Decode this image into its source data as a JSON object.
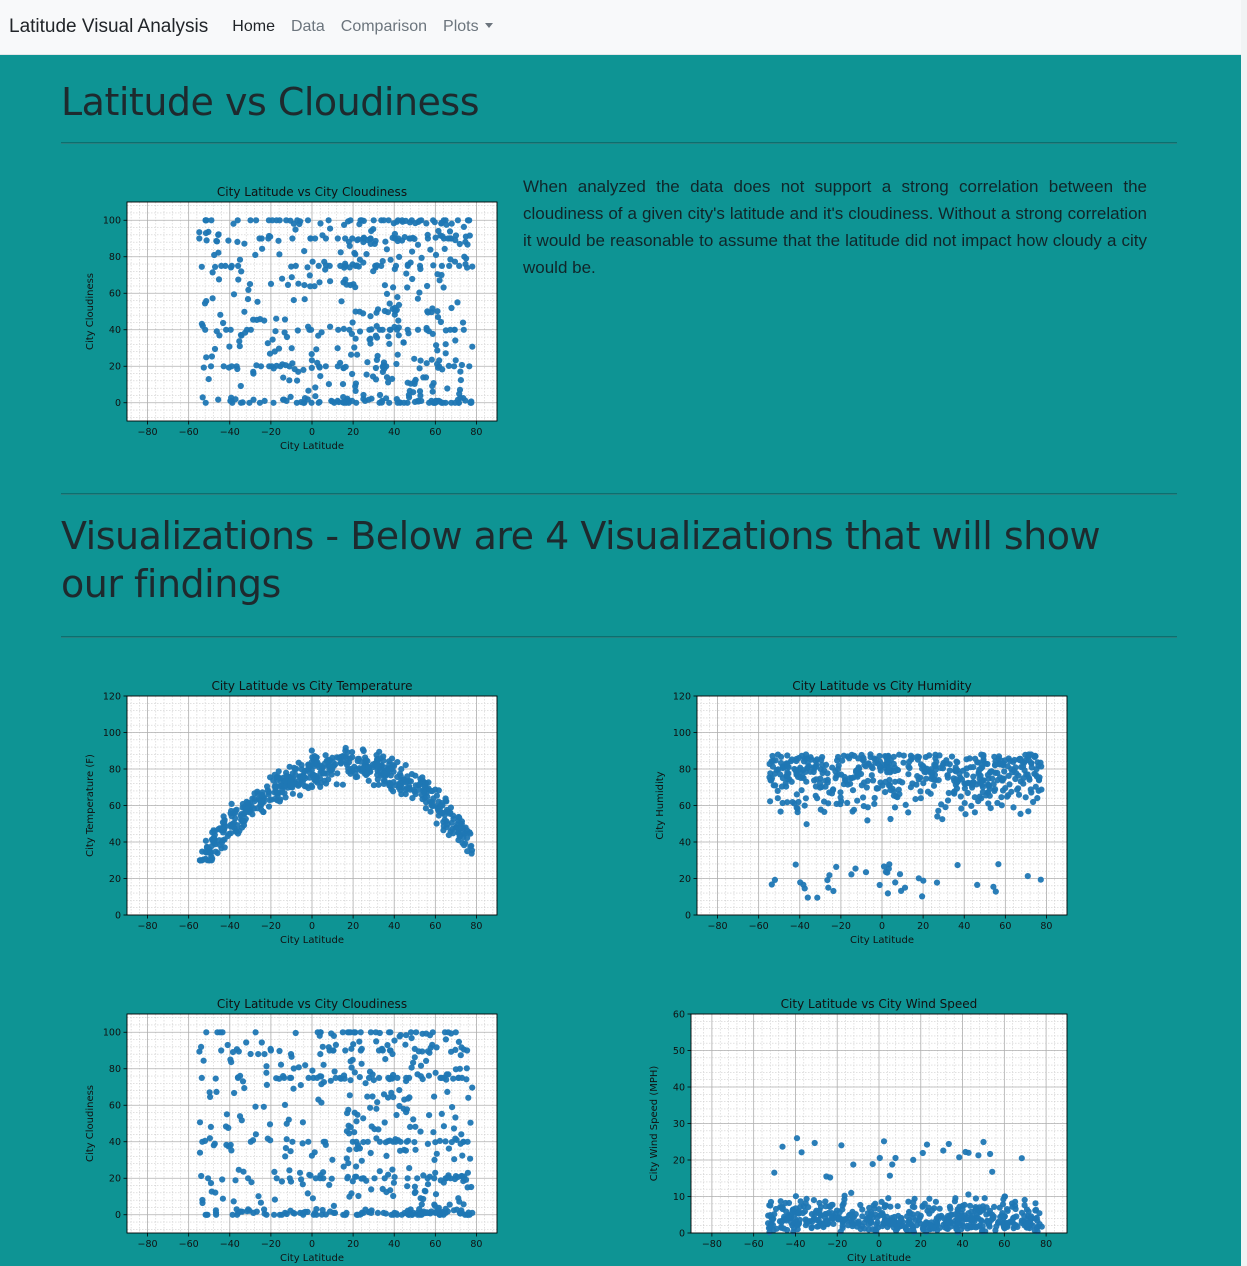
{
  "navbar": {
    "brand": "Latitude Visual Analysis",
    "items": [
      {
        "label": "Home",
        "active": true
      },
      {
        "label": "Data",
        "active": false
      },
      {
        "label": "Comparison",
        "active": false
      },
      {
        "label": "Plots",
        "active": false,
        "dropdown": true
      }
    ]
  },
  "section1": {
    "title": "Latitude vs Cloudiness",
    "description": "When analyzed the data does not support a strong correlation between the cloudiness of a given city's latitude and it's cloudiness. Without a strong correlation it would be reasonable to assume that the latitude did not impact how cloudy a city would be."
  },
  "section2": {
    "title": "Visualizations - Below are 4 Visualizations that will show our findings"
  },
  "colors": {
    "background": "#0e9494",
    "marker": "#1f77b4",
    "navbar": "#f8f9fa"
  },
  "chart_data": [
    {
      "id": "cloud-main",
      "type": "scatter",
      "title": "City Latitude vs City Cloudiness",
      "xlabel": "City Latitude",
      "ylabel": "City Cloudiness",
      "xlim": [
        -90,
        90
      ],
      "ylim": [
        -10,
        110
      ],
      "xticks": [
        -80,
        -60,
        -40,
        -20,
        0,
        20,
        40,
        60,
        80
      ],
      "yticks": [
        0,
        20,
        40,
        60,
        80,
        100
      ],
      "grid": true,
      "legend": "none",
      "profile": "cloud"
    },
    {
      "id": "temp",
      "type": "scatter",
      "title": "City Latitude vs City Temperature",
      "xlabel": "City Latitude",
      "ylabel": "City Temperature (F)",
      "xlim": [
        -90,
        90
      ],
      "ylim": [
        0,
        120
      ],
      "xticks": [
        -80,
        -60,
        -40,
        -20,
        0,
        20,
        40,
        60,
        80
      ],
      "yticks": [
        0,
        20,
        40,
        60,
        80,
        100,
        120
      ],
      "grid": true,
      "legend": "none",
      "profile": "temp"
    },
    {
      "id": "humidity",
      "type": "scatter",
      "title": "City Latitude vs City Humidity",
      "xlabel": "City Latitude",
      "ylabel": "City Humidity",
      "xlim": [
        -90,
        90
      ],
      "ylim": [
        0,
        120
      ],
      "xticks": [
        -80,
        -60,
        -40,
        -20,
        0,
        20,
        40,
        60,
        80
      ],
      "yticks": [
        0,
        20,
        40,
        60,
        80,
        100,
        120
      ],
      "grid": true,
      "legend": "none",
      "profile": "humidity"
    },
    {
      "id": "cloud-small",
      "type": "scatter",
      "title": "City Latitude vs City Cloudiness",
      "xlabel": "City Latitude",
      "ylabel": "City Cloudiness",
      "xlim": [
        -90,
        90
      ],
      "ylim": [
        -10,
        110
      ],
      "xticks": [
        -80,
        -60,
        -40,
        -20,
        0,
        20,
        40,
        60,
        80
      ],
      "yticks": [
        0,
        20,
        40,
        60,
        80,
        100
      ],
      "grid": true,
      "legend": "none",
      "profile": "cloud"
    },
    {
      "id": "wind",
      "type": "scatter",
      "title": "City Latitude vs City Wind Speed",
      "xlabel": "City Latitude",
      "ylabel": "City Wind Speed (MPH)",
      "xlim": [
        -90,
        90
      ],
      "ylim": [
        0,
        60
      ],
      "xticks": [
        -80,
        -60,
        -40,
        -20,
        0,
        20,
        40,
        60,
        80
      ],
      "yticks": [
        0,
        10,
        20,
        30,
        40,
        50,
        60
      ],
      "grid": true,
      "legend": "none",
      "profile": "wind"
    }
  ]
}
